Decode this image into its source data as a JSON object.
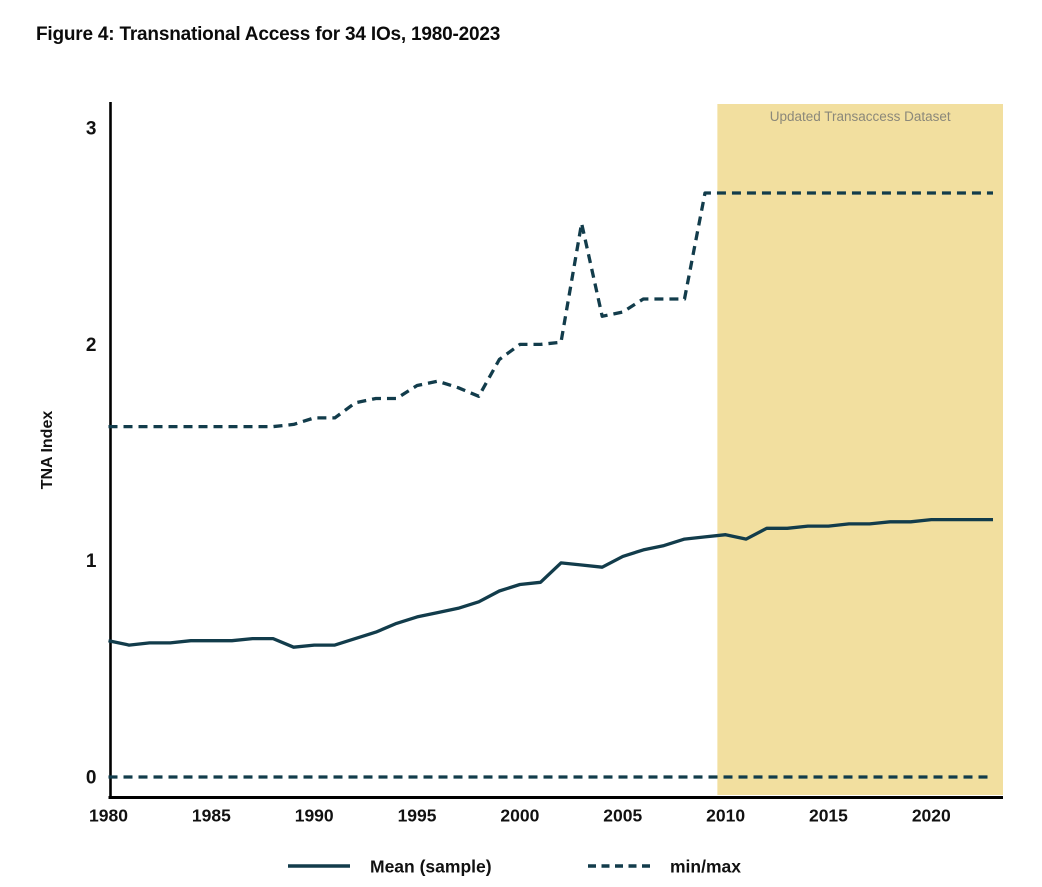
{
  "figure": {
    "title": "Figure 4: Transnational Access for 34 IOs, 1980-2023"
  },
  "colors": {
    "line": "#123c4b",
    "band": "#f2df9f",
    "band_label": "#8b887a",
    "axis": "#000000",
    "tick_text": "#111111",
    "background": "#ffffff"
  },
  "chart_data": {
    "type": "line",
    "title": "Figure 4: Transnational Access for 34 IOs, 1980-2023",
    "xlabel": "",
    "ylabel": "TNA Index",
    "x_ticks": [
      1980,
      1985,
      1990,
      1995,
      2000,
      2005,
      2010,
      2015,
      2020
    ],
    "y_ticks": [
      0,
      1,
      2,
      3
    ],
    "xlim": [
      1980,
      2023.5
    ],
    "ylim": [
      -0.09,
      3.13
    ],
    "grid": false,
    "legend_position": "bottom",
    "band": {
      "label": "Updated Transaccess Dataset",
      "x_start": 2009.6,
      "x_end": 2023.5
    },
    "x": [
      1980,
      1981,
      1982,
      1983,
      1984,
      1985,
      1986,
      1987,
      1988,
      1989,
      1990,
      1991,
      1992,
      1993,
      1994,
      1995,
      1996,
      1997,
      1998,
      1999,
      2000,
      2001,
      2002,
      2003,
      2004,
      2005,
      2006,
      2007,
      2008,
      2009,
      2010,
      2011,
      2012,
      2013,
      2014,
      2015,
      2016,
      2017,
      2018,
      2019,
      2020,
      2021,
      2022,
      2023
    ],
    "series": [
      {
        "name": "Mean (sample)",
        "style": "solid",
        "values": [
          0.63,
          0.61,
          0.62,
          0.62,
          0.63,
          0.63,
          0.63,
          0.64,
          0.64,
          0.6,
          0.61,
          0.61,
          0.64,
          0.67,
          0.71,
          0.74,
          0.76,
          0.78,
          0.81,
          0.86,
          0.89,
          0.9,
          0.99,
          0.98,
          0.97,
          1.02,
          1.05,
          1.07,
          1.1,
          1.11,
          1.12,
          1.1,
          1.15,
          1.15,
          1.16,
          1.16,
          1.17,
          1.17,
          1.18,
          1.18,
          1.19,
          1.19,
          1.19,
          1.19
        ]
      },
      {
        "name": "max (min/max)",
        "style": "dashed",
        "values": [
          1.62,
          1.62,
          1.62,
          1.62,
          1.62,
          1.62,
          1.62,
          1.62,
          1.62,
          1.63,
          1.66,
          1.66,
          1.73,
          1.75,
          1.75,
          1.81,
          1.83,
          1.8,
          1.76,
          1.93,
          2.0,
          2.0,
          2.01,
          2.56,
          2.13,
          2.15,
          2.21,
          2.21,
          2.21,
          2.7,
          2.7,
          2.7,
          2.7,
          2.7,
          2.7,
          2.7,
          2.7,
          2.7,
          2.7,
          2.7,
          2.7,
          2.7,
          2.7,
          2.7
        ]
      },
      {
        "name": "min (min/max)",
        "style": "dashed",
        "values": [
          0,
          0,
          0,
          0,
          0,
          0,
          0,
          0,
          0,
          0,
          0,
          0,
          0,
          0,
          0,
          0,
          0,
          0,
          0,
          0,
          0,
          0,
          0,
          0,
          0,
          0,
          0,
          0,
          0,
          0,
          0,
          0,
          0,
          0,
          0,
          0,
          0,
          0,
          0,
          0,
          0,
          0,
          0,
          0
        ]
      }
    ],
    "legend": [
      {
        "label": "Mean (sample)",
        "style": "solid"
      },
      {
        "label": "min/max",
        "style": "dashed"
      }
    ]
  }
}
